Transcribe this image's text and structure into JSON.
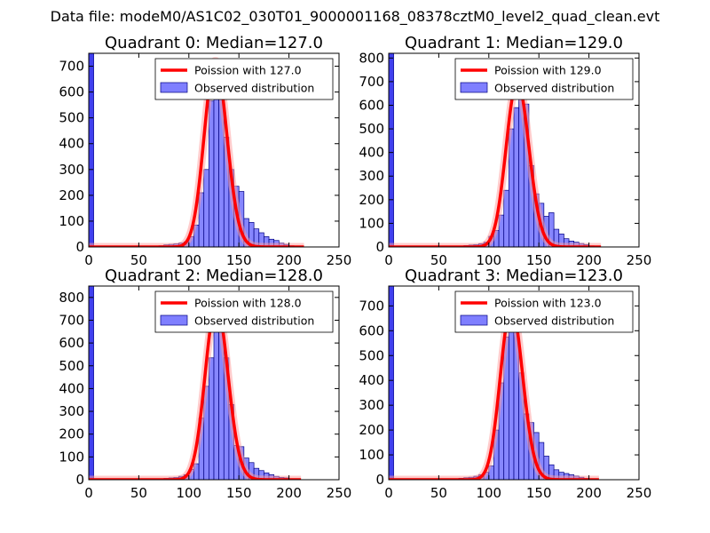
{
  "suptitle": "Data file: modeM0/AS1C02_030T01_9000001168_08378cztM0_level2_quad_clean.evt",
  "colors": {
    "bars": "#7f7fff",
    "bar_edge": "#000080",
    "poisson_line": "#ff0000",
    "poisson_peak_band": "#ff9999",
    "first_bin": "#4040ee"
  },
  "chart_data": [
    {
      "type": "bar",
      "title": "Quadrant 0: Median=127.0",
      "median": 127.0,
      "xlim": [
        0,
        250
      ],
      "ylim": [
        0,
        750
      ],
      "xticks": [
        "0",
        "50",
        "100",
        "150",
        "200",
        "250"
      ],
      "yticks": [
        "0",
        "100",
        "200",
        "300",
        "400",
        "500",
        "600",
        "700"
      ],
      "first_bin": {
        "x": [
          0,
          5
        ],
        "value": 750
      },
      "bin_width": 5,
      "bin_starts": [
        65,
        70,
        75,
        80,
        85,
        90,
        95,
        100,
        105,
        110,
        115,
        120,
        125,
        130,
        135,
        140,
        145,
        150,
        155,
        160,
        165,
        170,
        175,
        180,
        185,
        190,
        195,
        200
      ],
      "values": [
        2,
        5,
        8,
        10,
        12,
        15,
        20,
        40,
        85,
        210,
        300,
        565,
        720,
        710,
        425,
        300,
        235,
        215,
        110,
        95,
        70,
        55,
        40,
        30,
        25,
        15,
        10,
        5
      ],
      "legend": [
        "Poission with 127.0",
        "Observed distribution"
      ],
      "poisson": {
        "lambda": 127.0,
        "x_range": [
          0,
          215
        ]
      }
    },
    {
      "type": "bar",
      "title": "Quadrant 1: Median=129.0",
      "median": 129.0,
      "xlim": [
        0,
        250
      ],
      "ylim": [
        0,
        820
      ],
      "xticks": [
        "0",
        "50",
        "100",
        "150",
        "200",
        "250"
      ],
      "yticks": [
        "0",
        "100",
        "200",
        "300",
        "400",
        "500",
        "600",
        "700",
        "800"
      ],
      "first_bin": {
        "x": [
          0,
          5
        ],
        "value": 820
      },
      "bin_width": 5,
      "bin_starts": [
        65,
        70,
        75,
        80,
        85,
        90,
        95,
        100,
        105,
        110,
        115,
        120,
        125,
        130,
        135,
        140,
        145,
        150,
        155,
        160,
        165,
        170,
        175,
        180,
        185,
        190,
        195,
        200
      ],
      "values": [
        2,
        4,
        6,
        8,
        10,
        14,
        20,
        45,
        70,
        135,
        240,
        500,
        590,
        700,
        605,
        345,
        225,
        185,
        130,
        145,
        75,
        55,
        35,
        25,
        20,
        15,
        10,
        5
      ],
      "legend": [
        "Poission with 129.0",
        "Observed distribution"
      ],
      "poisson": {
        "lambda": 129.0,
        "x_range": [
          0,
          212
        ]
      }
    },
    {
      "type": "bar",
      "title": "Quadrant 2: Median=128.0",
      "median": 128.0,
      "xlim": [
        0,
        250
      ],
      "ylim": [
        0,
        850
      ],
      "xticks": [
        "0",
        "50",
        "100",
        "150",
        "200",
        "250"
      ],
      "yticks": [
        "0",
        "100",
        "200",
        "300",
        "400",
        "500",
        "600",
        "700",
        "800"
      ],
      "first_bin": {
        "x": [
          0,
          5
        ],
        "value": 850
      },
      "bin_width": 5,
      "bin_starts": [
        65,
        70,
        75,
        80,
        85,
        90,
        95,
        100,
        105,
        110,
        115,
        120,
        125,
        130,
        135,
        140,
        145,
        150,
        155,
        160,
        165,
        170,
        175,
        180,
        185,
        190,
        195,
        200
      ],
      "values": [
        2,
        4,
        6,
        8,
        10,
        15,
        22,
        45,
        70,
        270,
        410,
        535,
        770,
        680,
        535,
        330,
        150,
        145,
        95,
        75,
        50,
        40,
        30,
        22,
        15,
        10,
        8,
        4
      ],
      "legend": [
        "Poission with 128.0",
        "Observed distribution"
      ],
      "poisson": {
        "lambda": 128.0,
        "x_range": [
          0,
          212
        ]
      }
    },
    {
      "type": "bar",
      "title": "Quadrant 3: Median=123.0",
      "median": 123.0,
      "xlim": [
        0,
        250
      ],
      "ylim": [
        0,
        780
      ],
      "xticks": [
        "0",
        "50",
        "100",
        "150",
        "200",
        "250"
      ],
      "yticks": [
        "0",
        "100",
        "200",
        "300",
        "400",
        "500",
        "600",
        "700"
      ],
      "first_bin": {
        "x": [
          0,
          5
        ],
        "value": 780
      },
      "bin_width": 5,
      "bin_starts": [
        60,
        65,
        70,
        75,
        80,
        85,
        90,
        95,
        100,
        105,
        110,
        115,
        120,
        125,
        130,
        135,
        140,
        145,
        150,
        155,
        160,
        165,
        170,
        175,
        180,
        185,
        190,
        195
      ],
      "values": [
        2,
        4,
        6,
        8,
        10,
        14,
        20,
        30,
        55,
        200,
        390,
        575,
        695,
        640,
        430,
        265,
        230,
        190,
        150,
        95,
        60,
        40,
        30,
        25,
        20,
        15,
        10,
        5
      ],
      "legend": [
        "Poission with 123.0",
        "Observed distribution"
      ],
      "poisson": {
        "lambda": 123.0,
        "x_range": [
          0,
          210
        ]
      }
    }
  ]
}
